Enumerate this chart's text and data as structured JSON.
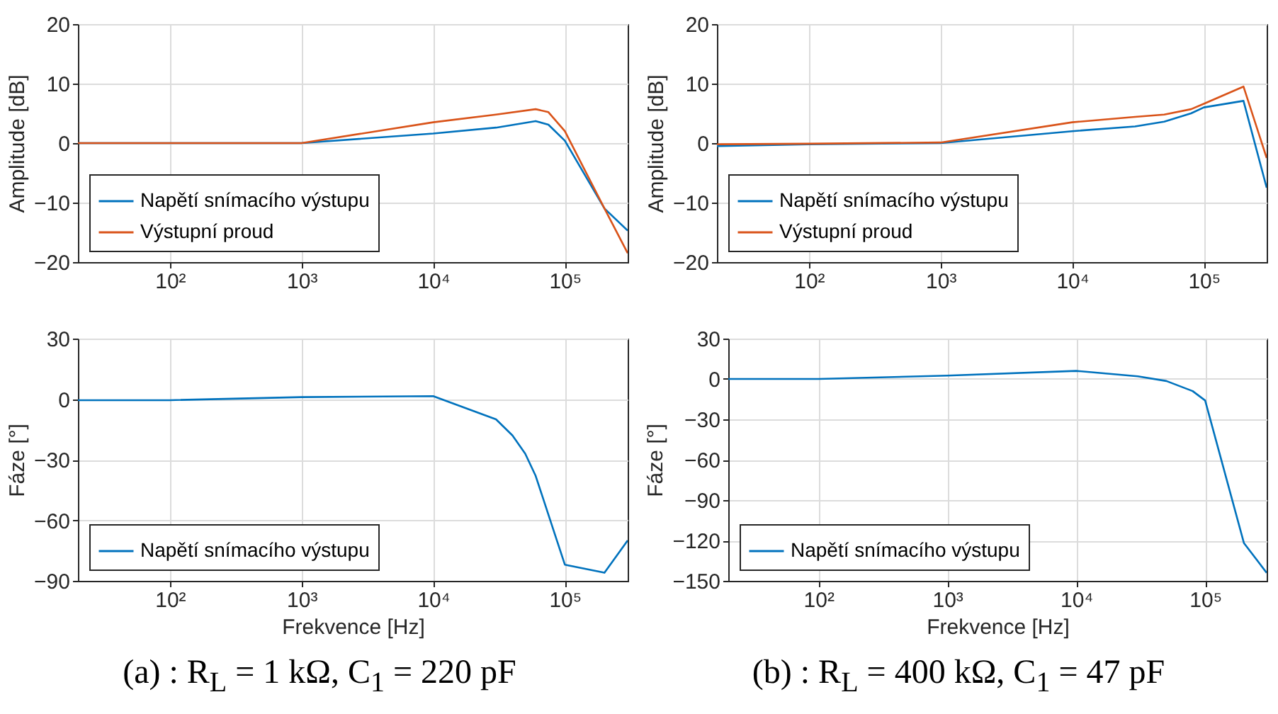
{
  "chart_data": [
    {
      "type": "line",
      "ylabel": "Amplitude [dB]",
      "log": "x",
      "grid": true,
      "legend": "bottom left",
      "xlim": [
        20,
        300000
      ],
      "xticks": [
        {
          "value": 100,
          "label": "10²"
        },
        {
          "value": 1000,
          "label": "10³"
        },
        {
          "value": 10000,
          "label": "10⁴"
        },
        {
          "value": 100000,
          "label": "10⁵"
        }
      ],
      "ylim": [
        -20,
        20
      ],
      "yticks": [
        -20,
        -10,
        0,
        10,
        20
      ],
      "x": [
        20,
        100,
        1000,
        10000,
        30000,
        60000,
        75000,
        100000,
        200000,
        300000
      ],
      "series": [
        {
          "name": "Napětí snímacího výstupu",
          "color": "#0072bd",
          "values": [
            0,
            0,
            0,
            1.6,
            2.6,
            3.7,
            3.1,
            0.4,
            -11,
            -14.7
          ]
        },
        {
          "name": "Výstupní proud",
          "color": "#d95319",
          "values": [
            0,
            0,
            0,
            3.5,
            4.8,
            5.7,
            5.2,
            2,
            -11,
            -18.5
          ]
        }
      ]
    },
    {
      "type": "line",
      "ylabel": "Amplitude [dB]",
      "log": "x",
      "grid": true,
      "legend": "bottom left",
      "xlim": [
        20,
        300000
      ],
      "xticks": [
        {
          "value": 100,
          "label": "10²"
        },
        {
          "value": 1000,
          "label": "10³"
        },
        {
          "value": 10000,
          "label": "10⁴"
        },
        {
          "value": 100000,
          "label": "10⁵"
        }
      ],
      "ylim": [
        -20,
        20
      ],
      "yticks": [
        -20,
        -10,
        0,
        10,
        20
      ],
      "x": [
        20,
        100,
        1000,
        10000,
        30000,
        50000,
        80000,
        100000,
        200000,
        300000
      ],
      "series": [
        {
          "name": "Napětí snímacího výstupu",
          "color": "#0072bd",
          "values": [
            -0.5,
            -0.2,
            0,
            2,
            2.8,
            3.6,
            5,
            6,
            7.1,
            -7.5
          ]
        },
        {
          "name": "Výstupní proud",
          "color": "#d95319",
          "values": [
            -0.2,
            -0.1,
            0.1,
            3.5,
            4.4,
            4.8,
            5.7,
            6.6,
            9.5,
            -2.5
          ]
        }
      ]
    },
    {
      "type": "line",
      "xlabel": "Frekvence [Hz]",
      "ylabel": "Fáze [°]",
      "log": "x",
      "grid": true,
      "legend": "bottom left",
      "xlim": [
        20,
        300000
      ],
      "xticks": [
        {
          "value": 100,
          "label": "10²"
        },
        {
          "value": 1000,
          "label": "10³"
        },
        {
          "value": 10000,
          "label": "10⁴"
        },
        {
          "value": 100000,
          "label": "10⁵"
        }
      ],
      "ylim": [
        -90,
        30
      ],
      "yticks": [
        -90,
        -60,
        -30,
        0,
        30
      ],
      "x": [
        20,
        100,
        1000,
        10000,
        30000,
        40000,
        50000,
        60000,
        100000,
        200000,
        300000
      ],
      "series": [
        {
          "name": "Napětí snímacího výstupu",
          "color": "#0072bd",
          "values": [
            -0.5,
            -0.5,
            1,
            1.5,
            -10,
            -18,
            -27,
            -38,
            -82,
            -86,
            -70
          ]
        }
      ],
      "annotations": [
        "(a) : R$_{L}$ = 1 kΩ,  C$_{1}$ = 220 pF"
      ]
    },
    {
      "type": "line",
      "xlabel": "Frekvence [Hz]",
      "ylabel": "Fáze [°]",
      "log": "x",
      "grid": true,
      "legend": "bottom left",
      "xlim": [
        20,
        300000
      ],
      "xticks": [
        {
          "value": 100,
          "label": "10²"
        },
        {
          "value": 1000,
          "label": "10³"
        },
        {
          "value": 10000,
          "label": "10⁴"
        },
        {
          "value": 100000,
          "label": "10⁵"
        }
      ],
      "ylim": [
        -150,
        30
      ],
      "yticks": [
        -150,
        -120,
        -90,
        -60,
        -30,
        0,
        30
      ],
      "x": [
        20,
        100,
        1000,
        10000,
        30000,
        50000,
        80000,
        100000,
        200000,
        300000
      ],
      "series": [
        {
          "name": "Napětí snímacího výstupu",
          "color": "#0072bd",
          "values": [
            0,
            0,
            2.5,
            6,
            2,
            -1.5,
            -9,
            -16,
            -122,
            -144
          ]
        }
      ],
      "annotations": [
        "(b) : R$_{L}$ = 400 kΩ,  C$_{1}$ = 47 pF"
      ]
    }
  ]
}
